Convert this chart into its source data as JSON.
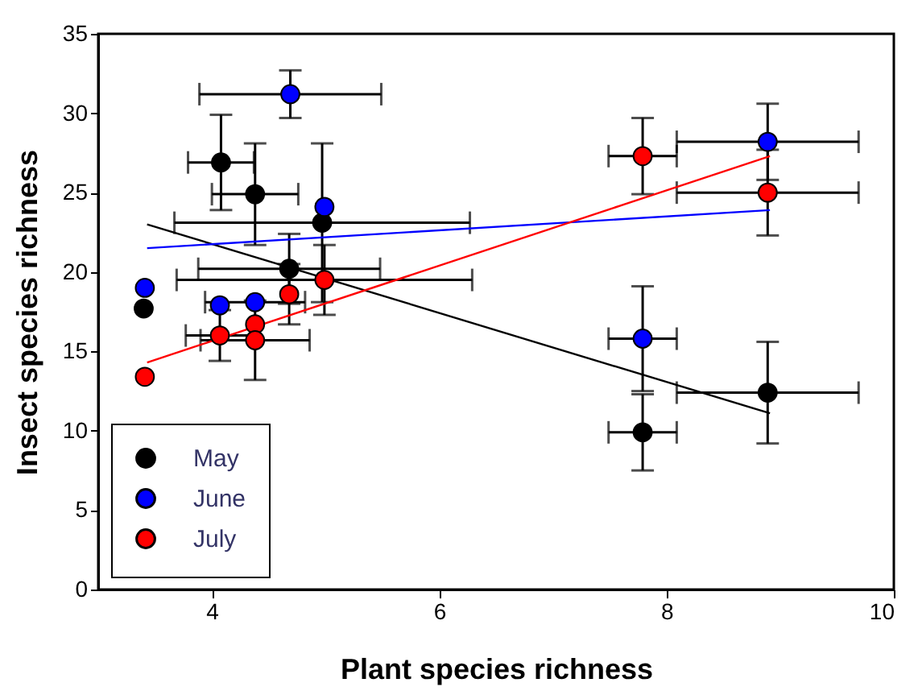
{
  "chart_data": {
    "type": "scatter",
    "xlabel": "Plant species richness",
    "ylabel": "Insect species richness",
    "xlim": [
      3,
      10
    ],
    "ylim": [
      0,
      35
    ],
    "xticks": [
      4,
      6,
      8,
      10
    ],
    "yticks": [
      0,
      5,
      10,
      15,
      20,
      25,
      30,
      35
    ],
    "grid": false,
    "legend": "bottom left",
    "marker": "circle",
    "series": [
      {
        "name": "May",
        "color": "#000000",
        "x": [
          3.4,
          4.08,
          4.38,
          4.68,
          4.97,
          7.79,
          8.89
        ],
        "values": [
          17.7,
          26.9,
          24.9,
          20.2,
          23.1,
          9.9,
          12.4
        ],
        "errors": [
          null,
          3,
          3.2,
          2.2,
          5,
          2.4,
          3.2
        ],
        "xerrors": [
          null,
          0.29,
          0.38,
          0.8,
          1.3,
          0.3,
          0.8
        ]
      },
      {
        "name": "June",
        "color": "#0000ff",
        "x": [
          3.41,
          4.07,
          4.38,
          4.69,
          4.99,
          7.79,
          8.89
        ],
        "values": [
          19.0,
          17.9,
          18.1,
          31.2,
          24.1,
          15.8,
          28.2
        ],
        "errors": [
          null,
          null,
          null,
          1.5,
          null,
          3.3,
          2.4
        ],
        "xerrors": [
          null,
          null,
          0.44,
          0.8,
          null,
          0.3,
          0.8
        ]
      },
      {
        "name": "July",
        "color": "#ff0000",
        "x": [
          3.41,
          4.07,
          4.38,
          4.38,
          4.68,
          4.99,
          7.79,
          8.89
        ],
        "values": [
          13.4,
          16.0,
          16.7,
          15.7,
          18.6,
          19.5,
          27.3,
          25.0
        ],
        "errors": [
          null,
          1.6,
          null,
          2.5,
          1.9,
          2.2,
          2.4,
          2.7
        ],
        "xerrors": [
          null,
          0.3,
          null,
          0.48,
          null,
          1.3,
          0.3,
          0.8
        ]
      },
      {
        "type": "line",
        "marker": "none",
        "color": "#000000",
        "x": [
          3.43,
          8.91
        ],
        "values": [
          23.0,
          11.1
        ]
      },
      {
        "type": "line",
        "marker": "none",
        "color": "#0000ff",
        "x": [
          3.43,
          8.91
        ],
        "values": [
          21.5,
          23.9
        ]
      },
      {
        "type": "line",
        "marker": "none",
        "color": "#ff0000",
        "x": [
          3.43,
          8.91
        ],
        "values": [
          14.3,
          27.3
        ]
      }
    ]
  }
}
